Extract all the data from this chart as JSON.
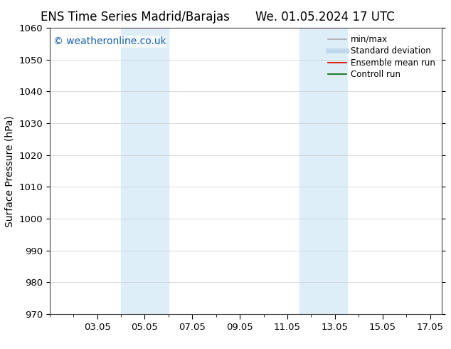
{
  "title_left": "ENS Time Series Madrid/Barajas",
  "title_right": "We. 01.05.2024 17 UTC",
  "ylabel": "Surface Pressure (hPa)",
  "ylim": [
    970,
    1060
  ],
  "yticks": [
    970,
    980,
    990,
    1000,
    1010,
    1020,
    1030,
    1040,
    1050,
    1060
  ],
  "xlim": [
    1.0,
    17.5
  ],
  "xtick_labels": [
    "03.05",
    "05.05",
    "07.05",
    "09.05",
    "11.05",
    "13.05",
    "15.05",
    "17.05"
  ],
  "xtick_positions": [
    3,
    5,
    7,
    9,
    11,
    13,
    15,
    17
  ],
  "shaded_bands": [
    {
      "xmin": 4.0,
      "xmax": 6.0,
      "color": "#ddeef8"
    },
    {
      "xmin": 11.5,
      "xmax": 13.5,
      "color": "#ddeef8"
    }
  ],
  "watermark_text": "© weatheronline.co.uk",
  "watermark_color": "#1a5fb0",
  "watermark_fontsize": 10,
  "bg_color": "#ffffff",
  "plot_bg_color": "#ffffff",
  "legend_items": [
    {
      "label": "min/max",
      "color": "#aaaaaa",
      "lw": 1.2,
      "style": "solid"
    },
    {
      "label": "Standard deviation",
      "color": "#c0d8ec",
      "lw": 5,
      "style": "solid"
    },
    {
      "label": "Ensemble mean run",
      "color": "#dd0000",
      "lw": 1.2,
      "style": "solid"
    },
    {
      "label": "Controll run",
      "color": "#006600",
      "lw": 1.2,
      "style": "solid"
    }
  ],
  "title_fontsize": 12,
  "axis_fontsize": 10,
  "tick_fontsize": 9.5,
  "legend_fontsize": 8.5,
  "spine_color": "#444444"
}
